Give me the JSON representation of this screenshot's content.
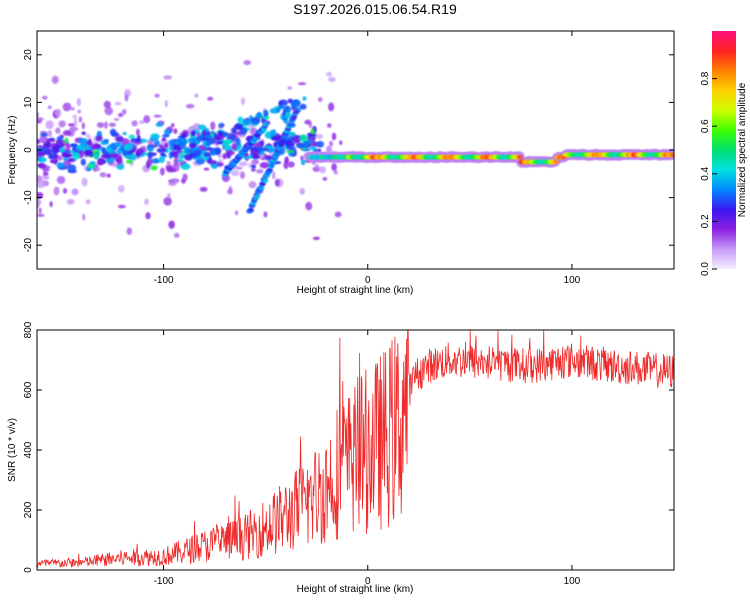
{
  "figure": {
    "title": "S197.2026.015.06.54.R19"
  },
  "chart_data": [
    {
      "type": "heatmap",
      "name": "spectrogram",
      "xlabel": "Height of straight line (km)",
      "ylabel": "Frequency (Hz)",
      "xlim": [
        -162,
        150
      ],
      "ylim": [
        -25,
        25
      ],
      "xticks": [
        -100,
        0,
        100
      ],
      "xtick_labels": [
        "-100",
        "0",
        "100"
      ],
      "yticks": [
        -20,
        -10,
        0,
        10,
        20
      ],
      "ytick_labels": [
        "-20",
        "-10",
        "0",
        "10",
        "20"
      ],
      "colorbar": {
        "label": "Normalized spectral amplitude",
        "range": [
          0,
          1
        ],
        "ticks": [
          0.0,
          0.2,
          0.4,
          0.6,
          0.8
        ],
        "tick_labels": [
          "0.0",
          "0.2",
          "0.4",
          "0.6",
          "0.8"
        ],
        "colors": [
          "#f6eefe",
          "#c89af8",
          "#8a1fe0",
          "#3a18f0",
          "#0088ff",
          "#00e0e0",
          "#00e070",
          "#40ff00",
          "#d0ff00",
          "#ffd000",
          "#ff8000",
          "#ff2020",
          "#ff1080"
        ]
      },
      "features": [
        {
          "name": "carrier-line",
          "x": [
            -20,
            150
          ],
          "freq_hz": [
            -1.5,
            -2.5,
            -1.0
          ],
          "peak_amplitude": 0.95
        },
        {
          "name": "scatter-cloud",
          "x": [
            -162,
            -25
          ],
          "freq_hz": [
            -8,
            12
          ],
          "peak_amplitude": 0.35
        },
        {
          "name": "diagonal-feature-1",
          "x0": -70,
          "f0": -5,
          "x1": -50,
          "f1": 5
        },
        {
          "name": "diagonal-feature-2",
          "x0": -58,
          "f0": -13,
          "x1": -35,
          "f1": 8
        }
      ]
    },
    {
      "type": "line",
      "name": "snr",
      "xlabel": "Height of straight line (km)",
      "ylabel": "SNR (10 * v/v)",
      "xlim": [
        -162,
        150
      ],
      "ylim": [
        0,
        800
      ],
      "xticks": [
        -100,
        0,
        100
      ],
      "xtick_labels": [
        "-100",
        "0",
        "100"
      ],
      "yticks": [
        0,
        200,
        400,
        600,
        800
      ],
      "ytick_labels": [
        "0",
        "200",
        "400",
        "600",
        "800"
      ],
      "color": "#ee2a2a",
      "series": [
        {
          "name": "SNR",
          "x": [
            -162,
            -140,
            -120,
            -100,
            -80,
            -60,
            -45,
            -30,
            -20,
            -15,
            -10,
            -5,
            0,
            5,
            10,
            15,
            20,
            25,
            30,
            40,
            60,
            80,
            100,
            120,
            150
          ],
          "values": [
            20,
            25,
            40,
            45,
            80,
            110,
            160,
            220,
            280,
            330,
            350,
            380,
            400,
            420,
            450,
            480,
            600,
            660,
            680,
            700,
            690,
            680,
            700,
            680,
            660
          ]
        }
      ]
    }
  ]
}
